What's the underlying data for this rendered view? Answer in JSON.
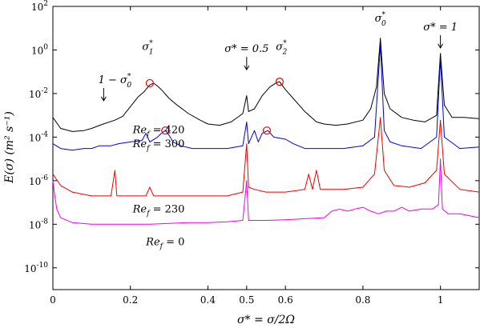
{
  "chart_data": {
    "type": "line",
    "title": "",
    "xlabel": "σ* = σ/2Ω",
    "ylabel": "E(σ) (m² s⁻¹)",
    "xlim": [
      0,
      1.1
    ],
    "ylim": [
      1e-11,
      100
    ],
    "yscale": "log",
    "grid": false,
    "x_ticks": [
      {
        "value": 0,
        "label": "0"
      },
      {
        "value": 0.2,
        "label": "0.2"
      },
      {
        "value": 0.4,
        "label": "0.4"
      },
      {
        "value": 0.5,
        "label": "0.5"
      },
      {
        "value": 0.6,
        "label": "0.6"
      },
      {
        "value": 0.8,
        "label": "0.8"
      },
      {
        "value": 1.0,
        "label": "1"
      }
    ],
    "y_ticks": [
      {
        "value": 1e-10,
        "label_base": "10",
        "label_exp": "-10"
      },
      {
        "value": 1e-08,
        "label_base": "10",
        "label_exp": "-8"
      },
      {
        "value": 1e-06,
        "label_base": "10",
        "label_exp": "-6"
      },
      {
        "value": 0.0001,
        "label_base": "10",
        "label_exp": "-4"
      },
      {
        "value": 0.01,
        "label_base": "10",
        "label_exp": "-2"
      },
      {
        "value": 1,
        "label_base": "10",
        "label_exp": "0"
      },
      {
        "value": 100,
        "label_base": "10",
        "label_exp": "2"
      }
    ],
    "series": [
      {
        "name": "Re_f = 420",
        "color": "#000000",
        "points": [
          [
            0,
            0.0008
          ],
          [
            0.02,
            0.00025
          ],
          [
            0.05,
            0.00018
          ],
          [
            0.08,
            0.0002
          ],
          [
            0.1,
            0.00025
          ],
          [
            0.13,
            0.0004
          ],
          [
            0.16,
            0.0006
          ],
          [
            0.18,
            0.0009
          ],
          [
            0.2,
            0.0025
          ],
          [
            0.22,
            0.007
          ],
          [
            0.235,
            0.012
          ],
          [
            0.25,
            0.025
          ],
          [
            0.26,
            0.03
          ],
          [
            0.27,
            0.022
          ],
          [
            0.28,
            0.015
          ],
          [
            0.3,
            0.006
          ],
          [
            0.32,
            0.003
          ],
          [
            0.35,
            0.0012
          ],
          [
            0.38,
            0.0006
          ],
          [
            0.4,
            0.0004
          ],
          [
            0.43,
            0.00035
          ],
          [
            0.46,
            0.0005
          ],
          [
            0.49,
            0.0012
          ],
          [
            0.5,
            0.008
          ],
          [
            0.505,
            0.0015
          ],
          [
            0.52,
            0.002
          ],
          [
            0.54,
            0.008
          ],
          [
            0.56,
            0.02
          ],
          [
            0.575,
            0.03
          ],
          [
            0.585,
            0.035
          ],
          [
            0.6,
            0.015
          ],
          [
            0.62,
            0.006
          ],
          [
            0.65,
            0.0015
          ],
          [
            0.68,
            0.0005
          ],
          [
            0.7,
            0.0004
          ],
          [
            0.73,
            0.00035
          ],
          [
            0.76,
            0.0004
          ],
          [
            0.8,
            0.0006
          ],
          [
            0.82,
            0.002
          ],
          [
            0.835,
            0.02
          ],
          [
            0.845,
            3.5
          ],
          [
            0.855,
            0.01
          ],
          [
            0.87,
            0.002
          ],
          [
            0.9,
            0.0008
          ],
          [
            0.93,
            0.0006
          ],
          [
            0.96,
            0.0005
          ],
          [
            0.99,
            0.001
          ],
          [
            1.0,
            0.7
          ],
          [
            1.01,
            0.003
          ],
          [
            1.03,
            0.0008
          ],
          [
            1.06,
            0.0008
          ],
          [
            1.1,
            0.0007
          ]
        ]
      },
      {
        "name": "Re_f = 300",
        "color": "#0000dd",
        "points": [
          [
            0,
            5e-05
          ],
          [
            0.02,
            3e-05
          ],
          [
            0.05,
            2.5e-05
          ],
          [
            0.08,
            3e-05
          ],
          [
            0.1,
            3e-05
          ],
          [
            0.12,
            4e-05
          ],
          [
            0.15,
            4e-05
          ],
          [
            0.17,
            5e-05
          ],
          [
            0.2,
            6e-05
          ],
          [
            0.23,
            7e-05
          ],
          [
            0.24,
            0.00015
          ],
          [
            0.25,
            6e-05
          ],
          [
            0.27,
            0.0001
          ],
          [
            0.28,
            0.00015
          ],
          [
            0.29,
            0.0002
          ],
          [
            0.3,
            0.00012
          ],
          [
            0.31,
            6e-05
          ],
          [
            0.33,
            4e-05
          ],
          [
            0.36,
            3e-05
          ],
          [
            0.4,
            3e-05
          ],
          [
            0.45,
            3e-05
          ],
          [
            0.49,
            4e-05
          ],
          [
            0.5,
            0.0005
          ],
          [
            0.505,
            5e-05
          ],
          [
            0.52,
            0.0002
          ],
          [
            0.53,
            6e-05
          ],
          [
            0.54,
            0.00015
          ],
          [
            0.555,
            0.0002
          ],
          [
            0.57,
            0.0001
          ],
          [
            0.6,
            8e-05
          ],
          [
            0.62,
            5e-05
          ],
          [
            0.65,
            3e-05
          ],
          [
            0.7,
            3e-05
          ],
          [
            0.75,
            3e-05
          ],
          [
            0.8,
            4e-05
          ],
          [
            0.83,
            0.0001
          ],
          [
            0.845,
            1.8
          ],
          [
            0.855,
            0.0002
          ],
          [
            0.87,
            6e-05
          ],
          [
            0.9,
            4e-05
          ],
          [
            0.95,
            3e-05
          ],
          [
            0.99,
            0.0001
          ],
          [
            1.0,
            0.4
          ],
          [
            1.01,
            0.0001
          ],
          [
            1.05,
            3e-05
          ],
          [
            1.1,
            3.5e-05
          ]
        ]
      },
      {
        "name": "Re_f = 230",
        "color": "#ee0000",
        "points": [
          [
            0,
            2e-06
          ],
          [
            0.02,
            6e-07
          ],
          [
            0.05,
            3e-07
          ],
          [
            0.1,
            2e-07
          ],
          [
            0.15,
            2e-07
          ],
          [
            0.16,
            3e-06
          ],
          [
            0.165,
            2e-07
          ],
          [
            0.2,
            2e-07
          ],
          [
            0.24,
            2e-07
          ],
          [
            0.25,
            5e-07
          ],
          [
            0.26,
            2e-07
          ],
          [
            0.3,
            2e-07
          ],
          [
            0.35,
            2e-07
          ],
          [
            0.4,
            2e-07
          ],
          [
            0.45,
            2e-07
          ],
          [
            0.49,
            3e-07
          ],
          [
            0.5,
            5e-05
          ],
          [
            0.505,
            5e-07
          ],
          [
            0.52,
            4e-07
          ],
          [
            0.55,
            3e-07
          ],
          [
            0.6,
            3e-07
          ],
          [
            0.65,
            4e-07
          ],
          [
            0.66,
            2e-06
          ],
          [
            0.67,
            4e-07
          ],
          [
            0.68,
            3e-06
          ],
          [
            0.69,
            4e-07
          ],
          [
            0.75,
            4e-07
          ],
          [
            0.8,
            5e-07
          ],
          [
            0.83,
            2e-06
          ],
          [
            0.845,
            0.0008
          ],
          [
            0.855,
            3e-06
          ],
          [
            0.88,
            6e-07
          ],
          [
            0.92,
            5e-07
          ],
          [
            0.96,
            8e-07
          ],
          [
            0.99,
            3e-06
          ],
          [
            1.0,
            0.0006
          ],
          [
            1.01,
            2e-06
          ],
          [
            1.05,
            4e-07
          ],
          [
            1.1,
            3e-07
          ]
        ]
      },
      {
        "name": "Re_f = 0",
        "color": "#ee00ee",
        "points": [
          [
            0,
            1e-06
          ],
          [
            0.005,
            2e-07
          ],
          [
            0.01,
            5e-08
          ],
          [
            0.02,
            2e-08
          ],
          [
            0.05,
            1.2e-08
          ],
          [
            0.1,
            1e-08
          ],
          [
            0.15,
            1e-08
          ],
          [
            0.2,
            1e-08
          ],
          [
            0.25,
            1e-08
          ],
          [
            0.3,
            1.1e-08
          ],
          [
            0.35,
            1.2e-08
          ],
          [
            0.4,
            1.2e-08
          ],
          [
            0.45,
            1.3e-08
          ],
          [
            0.49,
            1.5e-08
          ],
          [
            0.5,
            1e-06
          ],
          [
            0.505,
            1.5e-08
          ],
          [
            0.55,
            1.5e-08
          ],
          [
            0.6,
            1.6e-08
          ],
          [
            0.65,
            1.8e-08
          ],
          [
            0.7,
            2e-08
          ],
          [
            0.72,
            4e-08
          ],
          [
            0.74,
            5e-08
          ],
          [
            0.76,
            4e-08
          ],
          [
            0.78,
            5e-08
          ],
          [
            0.8,
            6e-08
          ],
          [
            0.82,
            4e-08
          ],
          [
            0.84,
            3e-08
          ],
          [
            0.86,
            4e-08
          ],
          [
            0.88,
            4e-08
          ],
          [
            0.9,
            6e-08
          ],
          [
            0.92,
            4e-08
          ],
          [
            0.95,
            5e-08
          ],
          [
            0.98,
            5e-08
          ],
          [
            0.995,
            8e-08
          ],
          [
            1.0,
            1e-05
          ],
          [
            1.005,
            5e-08
          ],
          [
            1.02,
            3e-08
          ],
          [
            1.05,
            3e-08
          ],
          [
            1.1,
            2e-08
          ]
        ]
      }
    ],
    "annotations": [
      {
        "id": "one-minus-sigma0",
        "text_main": "1 − σ",
        "text_sup": "*",
        "text_sub": "0",
        "x": 0.16,
        "y": 0.03,
        "arrow": true
      },
      {
        "id": "sigma1",
        "text_main": "σ",
        "text_sup": "*",
        "text_sub": "1",
        "x": 0.245,
        "y": 1.0,
        "arrow": false
      },
      {
        "id": "sigma-half",
        "text_main": "σ* = 0.5",
        "x": 0.5,
        "y": 0.8,
        "arrow": true
      },
      {
        "id": "sigma2",
        "text_main": "σ",
        "text_sup": "*",
        "text_sub": "2",
        "x": 0.59,
        "y": 1.0,
        "arrow": false
      },
      {
        "id": "sigma0",
        "text_main": "σ",
        "text_sup": "*",
        "text_sub": "0",
        "x": 0.845,
        "y": 20,
        "arrow": false
      },
      {
        "id": "sigma-one",
        "text_main": "σ* = 1",
        "x": 1.0,
        "y": 8,
        "arrow": true
      }
    ],
    "circles": [
      {
        "x": 0.25,
        "y": 0.03
      },
      {
        "x": 0.585,
        "y": 0.035
      },
      {
        "x": 0.29,
        "y": 0.0002
      },
      {
        "x": 0.552,
        "y": 0.0002
      }
    ],
    "curve_labels": [
      {
        "base": "Re",
        "sub": "f",
        "value": " = 420",
        "x": 0.34,
        "y": 0.00015
      },
      {
        "base": "Re",
        "sub": "f",
        "value": " = 300",
        "x": 0.34,
        "y": 3.5e-05
      },
      {
        "base": "Re",
        "sub": "f",
        "value": " = 230",
        "x": 0.34,
        "y": 3.5e-08
      },
      {
        "base": "Re",
        "sub": "f",
        "value": " = 0",
        "x": 0.34,
        "y": 1.1e-09
      }
    ]
  }
}
